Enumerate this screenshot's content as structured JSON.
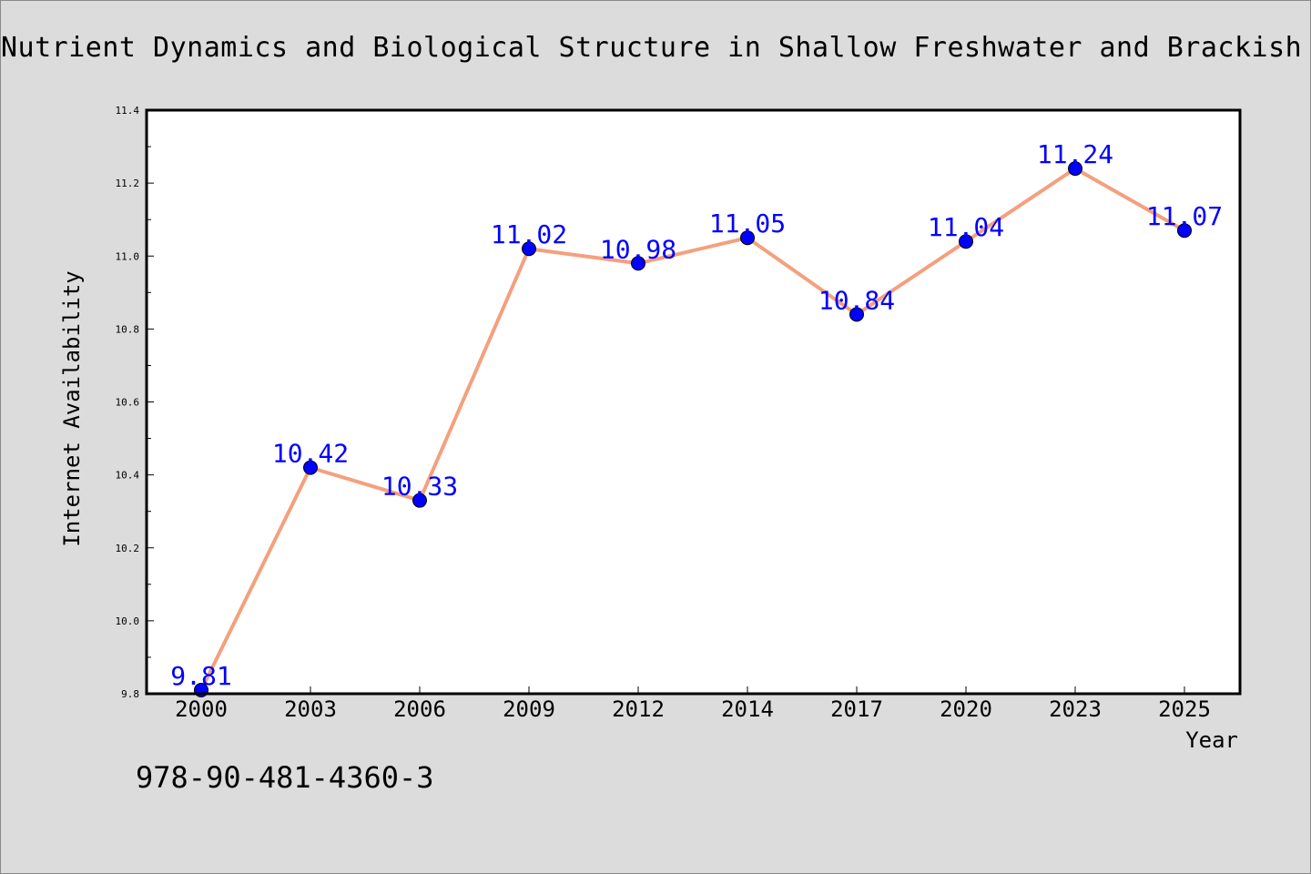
{
  "chart_data": {
    "type": "line",
    "title": "Nutrient Dynamics and Biological Structure in Shallow Freshwater and Brackish La",
    "xlabel": "Year",
    "ylabel": "Internet Availability",
    "categories": [
      "2000",
      "2003",
      "2006",
      "2009",
      "2012",
      "2014",
      "2017",
      "2020",
      "2023",
      "2025"
    ],
    "values": [
      9.81,
      10.42,
      10.33,
      11.02,
      10.98,
      11.05,
      10.84,
      11.04,
      11.24,
      11.07
    ],
    "data_labels": [
      "9.81",
      "10.42",
      "10.33",
      "11.02",
      "10.98",
      "11.05",
      "10.84",
      "11.04",
      "11.24",
      "11.07"
    ],
    "ylim": [
      9.8,
      11.4
    ],
    "yticks": [
      "9.8",
      "10.0",
      "10.2",
      "10.4",
      "10.6",
      "10.8",
      "11.0",
      "11.2",
      "11.4"
    ],
    "grid": false,
    "legend": "none",
    "line_color": "#f4a07e",
    "marker_color": "#0000ff",
    "label_color": "#0000ff"
  },
  "footer": {
    "isbn": "978-90-481-4360-3"
  }
}
